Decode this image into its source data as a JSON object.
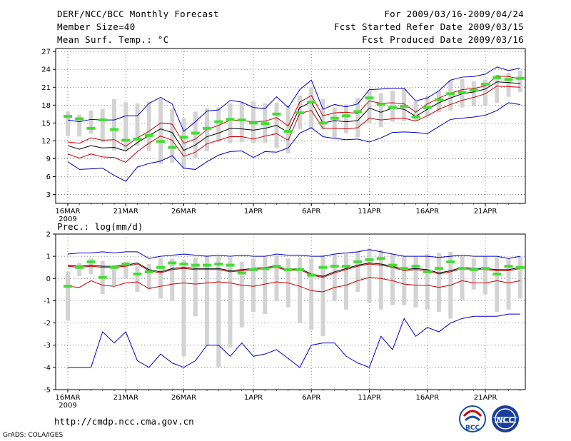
{
  "header": {
    "title": "DERF/NCC/BCC Monthly Forecast",
    "member_size": "Member Size=40",
    "variable_top": "Mean Surf. Temp.: °C",
    "period": "For 2009/03/16-2009/04/24",
    "fcst_started": "Fcst Started Refer Date 2009/03/15",
    "fcst_produced": "Fcst Produced Date 2009/03/16"
  },
  "footer": {
    "url": "http://cmdp.ncc.cma.gov.cn",
    "credit": "GrADS: COLA/IGES",
    "logo_bcc": "BCC",
    "logo_ncc": "NCC"
  },
  "colors": {
    "spread_line": "#0000cc",
    "std_band": "#cc0000",
    "ensemble_mean": "#000000",
    "observed_bar": "#d3d3d3",
    "observed_mean": "#44dd33"
  },
  "chart_data": [
    {
      "type": "line",
      "title": "Mean Surf. Temp.: °C",
      "x_tick_labels": [
        "16MAR",
        "21MAR",
        "26MAR",
        "1APR",
        "6APR",
        "11APR",
        "16APR",
        "21APR"
      ],
      "x_tick_day_index": [
        0,
        5,
        10,
        16,
        21,
        26,
        31,
        36
      ],
      "x_year_label": "2009",
      "ylim": [
        1.5,
        27.5
      ],
      "yticks": [
        3,
        6,
        9,
        12,
        15,
        18,
        21,
        24,
        27
      ],
      "days": 40,
      "series": [
        {
          "name": "max",
          "values": [
            8.5,
            7.2,
            7.3,
            7.4,
            6.2,
            5.2,
            7.6,
            8.2,
            8.6,
            9.5,
            7.4,
            7.2,
            8.5,
            9.6,
            10.2,
            10.3,
            9.2,
            10.2,
            10.1,
            10.8,
            13.3,
            14.2,
            12.7,
            12.4,
            12.2,
            12.3,
            11.8,
            12.5,
            13.4,
            13.5,
            13.4,
            13.2,
            14.4,
            15.6,
            15.8,
            16.0,
            16.3,
            17.1,
            18.4,
            18.1
          ]
        },
        {
          "name": "upper_max",
          "values": [
            15.5,
            15.2,
            15.6,
            15.5,
            15.5,
            16.2,
            16.2,
            18.3,
            19.3,
            18.2,
            13.6,
            15.2,
            17.0,
            17.2,
            18.8,
            18.5,
            17.6,
            17.4,
            19.4,
            17.6,
            20.6,
            22.2,
            17.3,
            18.1,
            17.7,
            18.2,
            20.6,
            20.7,
            20.8,
            20.8,
            18.7,
            19.2,
            20.4,
            22.2,
            22.7,
            22.8,
            23.2,
            24.4,
            23.8,
            24.2
          ]
        },
        {
          "name": "mean_plus_std",
          "values": [
            11.8,
            11.6,
            12.5,
            12.1,
            12.2,
            11.1,
            12.5,
            13.6,
            15.0,
            14.8,
            11.6,
            12.3,
            13.9,
            14.6,
            15.5,
            15.4,
            15.2,
            15.3,
            15.9,
            14.5,
            18.5,
            19.6,
            16.2,
            16.7,
            16.8,
            16.6,
            18.7,
            18.3,
            18.4,
            18.2,
            16.8,
            18.2,
            19.2,
            20.0,
            20.6,
            20.8,
            21.2,
            22.9,
            22.8,
            22.4
          ]
        },
        {
          "name": "mean",
          "values": [
            11.2,
            10.6,
            11.2,
            10.8,
            10.9,
            10.3,
            11.7,
            12.9,
            14.0,
            13.4,
            10.4,
            11.3,
            12.7,
            13.3,
            14.1,
            14.0,
            13.8,
            14.1,
            14.6,
            13.4,
            17.6,
            18.5,
            15.0,
            15.4,
            15.2,
            15.4,
            17.5,
            16.8,
            17.5,
            17.3,
            16.1,
            17.3,
            18.4,
            19.2,
            19.9,
            20.2,
            20.7,
            21.9,
            21.8,
            21.6
          ]
        },
        {
          "name": "mean_minus_std",
          "values": [
            9.8,
            9.1,
            9.8,
            9.3,
            9.2,
            8.4,
            10.2,
            11.6,
            12.8,
            12.1,
            9.4,
            10.1,
            11.5,
            12.1,
            12.7,
            12.7,
            12.3,
            12.8,
            13.2,
            12.1,
            16.6,
            17.1,
            14.1,
            14.1,
            14.0,
            14.2,
            15.8,
            15.5,
            15.7,
            15.8,
            15.3,
            16.2,
            17.3,
            18.1,
            18.8,
            19.3,
            19.9,
            21.2,
            21.1,
            21.0
          ]
        },
        {
          "name": "observed_mean",
          "values": [
            16.1,
            15.7,
            14.1,
            15.5,
            13.9,
            12.1,
            12.3,
            12.9,
            11.9,
            10.9,
            12.6,
            13.3,
            14.1,
            15.2,
            15.6,
            15.5,
            15.0,
            14.9,
            16.5,
            13.6,
            16.7,
            18.5,
            15.0,
            15.8,
            16.2,
            16.9,
            19.2,
            18.1,
            17.6,
            17.8,
            16.0,
            17.6,
            18.9,
            19.9,
            20.1,
            20.5,
            21.5,
            22.6,
            22.3,
            22.5
          ]
        }
      ],
      "observed_range": {
        "low": [
          12.8,
          12.7,
          13.2,
          11.8,
          10.4,
          10.4,
          11.2,
          10.3,
          8.1,
          8.3,
          7.5,
          9.1,
          10.3,
          11.8,
          11.6,
          11.8,
          11.6,
          11.7,
          10.8,
          9.9,
          14.0,
          14.0,
          13.9,
          12.5,
          13.3,
          12.6,
          15.0,
          14.3,
          15.2,
          15.3,
          15.3,
          16.1,
          16.8,
          17.1,
          17.6,
          17.8,
          17.9,
          18.4,
          19.4,
          20.2
        ],
        "high": [
          16.9,
          16.4,
          17.1,
          17.4,
          19.0,
          18.5,
          18.3,
          18.5,
          19.0,
          17.4,
          15.8,
          16.9,
          17.5,
          17.6,
          18.3,
          18.4,
          18.6,
          18.3,
          18.4,
          18.0,
          19.6,
          21.0,
          19.0,
          17.6,
          18.1,
          19.2,
          20.5,
          20.0,
          20.4,
          20.8,
          18.6,
          19.6,
          20.4,
          22.2,
          22.4,
          22.0,
          22.3,
          23.1,
          23.4,
          23.8
        ]
      }
    },
    {
      "type": "line",
      "title": "Prec.: log(mm/d)",
      "x_tick_labels": [
        "16MAR",
        "21MAR",
        "26MAR",
        "1APR",
        "6APR",
        "11APR",
        "16APR",
        "21APR"
      ],
      "x_tick_day_index": [
        0,
        5,
        10,
        16,
        21,
        26,
        31,
        36
      ],
      "x_year_label": "2009",
      "ylim": [
        -5,
        2
      ],
      "yticks": [
        -5,
        -4,
        -3,
        -2,
        -1,
        0,
        1,
        2
      ],
      "days": 40,
      "series": [
        {
          "name": "max",
          "values": [
            1.1,
            1.15,
            1.15,
            1.2,
            1.15,
            1.2,
            1.2,
            0.9,
            1.0,
            1.05,
            1.1,
            1.05,
            1.0,
            1.05,
            1.0,
            1.05,
            1.0,
            1.0,
            1.1,
            1.05,
            1.05,
            1.0,
            1.0,
            1.1,
            1.15,
            1.2,
            1.3,
            1.2,
            1.1,
            1.0,
            1.0,
            1.0,
            0.95,
            1.0,
            1.05,
            1.0,
            1.0,
            1.0,
            0.9,
            1.0
          ]
        },
        {
          "name": "mean",
          "values": [
            0.6,
            0.55,
            0.6,
            0.55,
            0.55,
            0.6,
            0.7,
            0.4,
            0.3,
            0.45,
            0.5,
            0.45,
            0.45,
            0.45,
            0.35,
            0.4,
            0.45,
            0.5,
            0.55,
            0.4,
            0.45,
            0.2,
            0.1,
            0.3,
            0.45,
            0.6,
            0.7,
            0.65,
            0.55,
            0.4,
            0.45,
            0.4,
            0.25,
            0.35,
            0.5,
            0.45,
            0.45,
            0.4,
            0.4,
            0.5
          ]
        },
        {
          "name": "min_line",
          "values": [
            -0.35,
            -0.4,
            -0.1,
            -0.3,
            -0.35,
            -0.2,
            -0.15,
            -0.45,
            -0.35,
            -0.25,
            -0.2,
            -0.25,
            -0.2,
            -0.15,
            -0.2,
            -0.3,
            -0.35,
            -0.25,
            -0.15,
            -0.2,
            -0.35,
            -0.55,
            -0.6,
            -0.4,
            -0.3,
            -0.1,
            0.05,
            0.0,
            -0.1,
            -0.25,
            -0.3,
            -0.3,
            -0.4,
            -0.3,
            -0.1,
            -0.2,
            -0.2,
            -0.1,
            -0.2,
            -0.1
          ]
        },
        {
          "name": "lowest",
          "values": [
            -4.0,
            -4.0,
            -4.0,
            -2.4,
            -2.9,
            -2.4,
            -3.7,
            -4.0,
            -3.4,
            -3.8,
            -4.0,
            -3.7,
            -3.0,
            -3.0,
            -3.5,
            -2.9,
            -3.5,
            -3.4,
            -3.2,
            -3.6,
            -4.0,
            -3.0,
            -2.9,
            -2.9,
            -3.5,
            -3.8,
            -4.0,
            -2.6,
            -3.2,
            -1.8,
            -2.6,
            -2.2,
            -2.4,
            -2.0,
            -1.8,
            -1.7,
            -1.7,
            -1.7,
            -1.6,
            -1.6
          ]
        },
        {
          "name": "observed_mean",
          "values": [
            -0.35,
            0.5,
            0.75,
            0.05,
            0.5,
            0.65,
            0.2,
            0.3,
            0.5,
            0.7,
            0.65,
            0.6,
            0.6,
            0.65,
            0.6,
            0.25,
            0.4,
            0.45,
            0.55,
            0.4,
            0.4,
            0.15,
            0.5,
            0.55,
            0.55,
            0.75,
            0.85,
            0.9,
            0.6,
            0.45,
            0.55,
            0.3,
            0.45,
            0.75,
            0.45,
            0.4,
            0.45,
            0.2,
            0.55,
            0.5
          ]
        }
      ],
      "observed_range": {
        "low": [
          -1.9,
          0.1,
          0.2,
          -0.7,
          -0.3,
          0.0,
          -0.6,
          -0.5,
          -0.9,
          -1.0,
          -3.5,
          -1.7,
          -3.0,
          -4.0,
          -3.1,
          -2.2,
          -1.5,
          -1.6,
          -1.0,
          -1.3,
          -2.0,
          -2.3,
          -2.6,
          -1.0,
          -1.4,
          -0.6,
          -1.1,
          -1.4,
          -1.2,
          -1.2,
          -1.3,
          -1.4,
          -1.5,
          -1.8,
          -1.0,
          -0.5,
          -0.7,
          -1.5,
          -1.4,
          -0.9
        ],
        "high": [
          0.3,
          0.7,
          0.9,
          0.8,
          0.6,
          0.75,
          0.55,
          0.65,
          0.9,
          0.9,
          0.85,
          0.95,
          1.05,
          1.0,
          0.95,
          0.75,
          0.9,
          1.0,
          1.05,
          0.9,
          0.95,
          0.9,
          1.05,
          1.1,
          1.1,
          1.2,
          1.35,
          1.3,
          1.1,
          1.0,
          1.0,
          1.1,
          1.15,
          1.2,
          1.0,
          0.9,
          1.0,
          0.95,
          0.9,
          1.0
        ]
      }
    }
  ]
}
